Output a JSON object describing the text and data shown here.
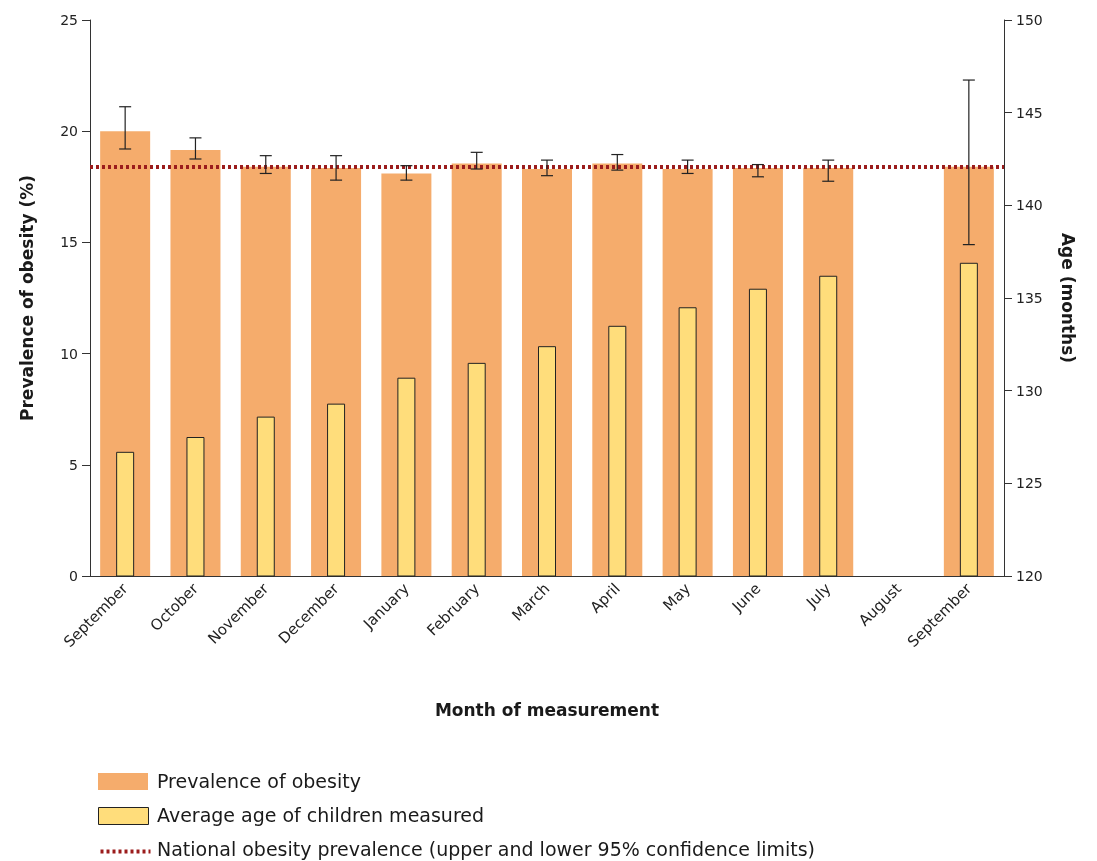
{
  "chart_data": {
    "type": "bar",
    "xlabel": "Month of measurement",
    "ylabel": "Prevalence of obesity (%)",
    "y2label": "Age (months)",
    "categories": [
      "September",
      "October",
      "November",
      "December",
      "January",
      "February",
      "March",
      "April",
      "May",
      "June",
      "July",
      "August",
      "September"
    ],
    "series": [
      {
        "name": "Prevalence of obesity",
        "color": "#f5ac6c",
        "values": [
          20.0,
          19.15,
          18.4,
          18.35,
          18.1,
          18.55,
          18.3,
          18.55,
          18.3,
          18.35,
          18.35,
          null,
          18.4
        ],
        "errors": [
          [
            19.2,
            21.1
          ],
          [
            18.75,
            19.7
          ],
          [
            18.1,
            18.9
          ],
          [
            17.8,
            18.9
          ],
          [
            17.8,
            18.45
          ],
          [
            18.3,
            19.05
          ],
          [
            18.0,
            18.7
          ],
          [
            18.25,
            18.95
          ],
          [
            18.1,
            18.7
          ],
          [
            17.95,
            18.5
          ],
          [
            17.75,
            18.7
          ],
          null,
          [
            14.9,
            22.3
          ]
        ]
      },
      {
        "name": "Average age of children measured",
        "color": "#ffdd7b",
        "axis": "y2",
        "values": [
          126.7,
          127.5,
          128.6,
          129.3,
          130.7,
          131.5,
          132.4,
          133.5,
          134.5,
          135.5,
          136.2,
          null,
          136.9
        ]
      }
    ],
    "ref_lines": [
      {
        "axis": "y",
        "value": 18.4,
        "label": "National obesity prevalence (upper and lower 95% confidence limits)",
        "color": "#9b1c1c",
        "line_style": "dotted"
      }
    ],
    "ylim": [
      0,
      25
    ],
    "yticks": [
      0,
      5,
      10,
      15,
      20,
      25
    ],
    "y2lim": [
      120,
      150
    ],
    "y2ticks": [
      120,
      125,
      130,
      135,
      140,
      145,
      150
    ],
    "grid": false,
    "legend": "bottom left"
  }
}
